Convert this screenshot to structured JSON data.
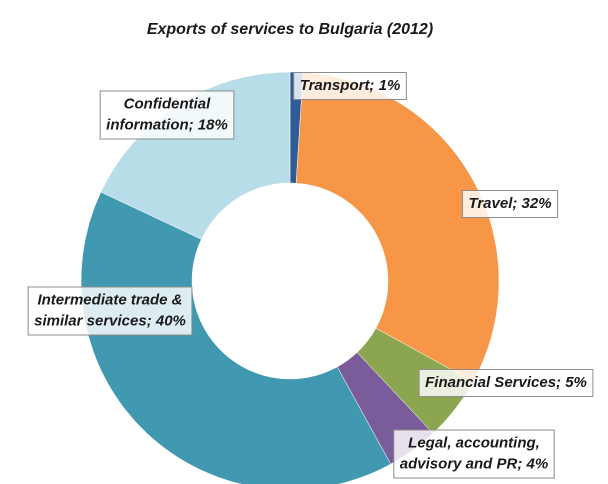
{
  "chart_data": {
    "type": "donut",
    "title": "Exports of services to Bulgaria (2012)",
    "values": [
      1,
      32,
      5,
      4,
      40,
      18
    ],
    "value_labels": [
      [
        "Transport; 1%"
      ],
      [
        "Travel; 32%"
      ],
      [
        "Financial Services; 5%"
      ],
      [
        "Legal, accounting,",
        "advisory and PR; 4%"
      ],
      [
        "Intermediate trade &",
        "similar services; 40%"
      ],
      [
        "Confidential",
        "information; 18%"
      ]
    ],
    "colors": [
      "#2e5b95",
      "#f79646",
      "#8ba64e",
      "#7b5c9b",
      "#4198b1",
      "#b7dde8"
    ]
  }
}
